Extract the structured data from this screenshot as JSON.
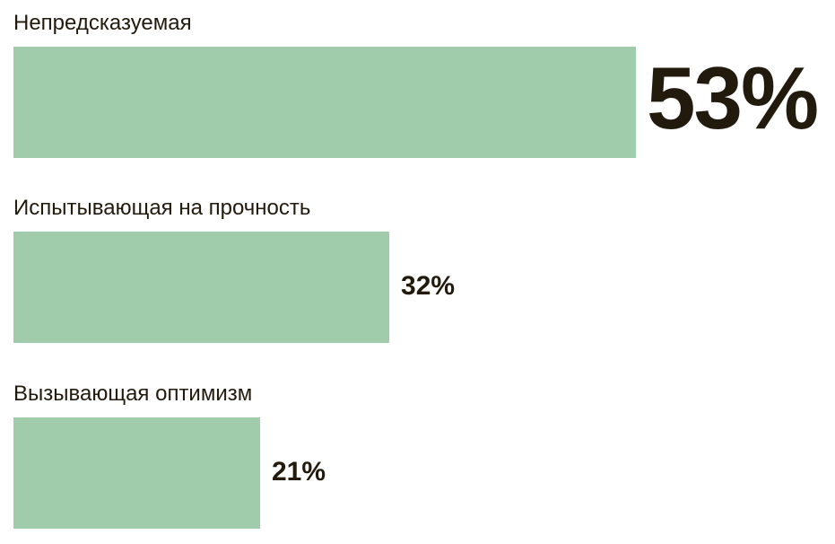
{
  "chart_data": {
    "type": "bar",
    "orientation": "horizontal",
    "categories": [
      "Непредсказуемая",
      "Испытывающая на прочность",
      "Вызывающая оптимизм"
    ],
    "values": [
      53,
      32,
      21
    ],
    "value_labels": [
      "53%",
      "32%",
      "21%"
    ],
    "unit": "%",
    "bar_color": "#a0ccab",
    "text_color": "#231a0e",
    "grid": false
  }
}
